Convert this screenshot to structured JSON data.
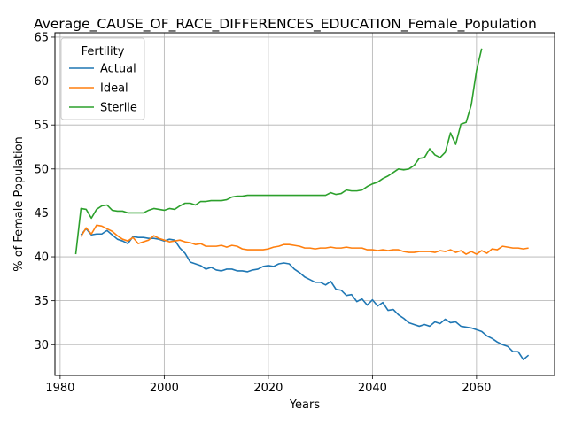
{
  "chart_data": {
    "type": "line",
    "title": "Average_CAUSE_OF_RACE_DIFFERENCES_EDUCATION_Female_Population",
    "xlabel": "Years",
    "ylabel": "% of Female Population",
    "xlim": [
      1979,
      2075
    ],
    "ylim": [
      26.5,
      65.5
    ],
    "xticks": [
      1980,
      2000,
      2020,
      2040,
      2060
    ],
    "yticks": [
      30,
      35,
      40,
      45,
      50,
      55,
      60,
      65
    ],
    "grid": true,
    "legend": {
      "title": "Fertility",
      "placement": "top-left"
    },
    "series": [
      {
        "name": "Actual",
        "color": "#1f77b4",
        "x": [
          1984,
          1985,
          1986,
          1987,
          1988,
          1989,
          1990,
          1991,
          1992,
          1993,
          1994,
          1995,
          1996,
          1997,
          1998,
          1999,
          2000,
          2001,
          2002,
          2003,
          2004,
          2005,
          2006,
          2007,
          2008,
          2009,
          2010,
          2011,
          2012,
          2013,
          2014,
          2015,
          2016,
          2017,
          2018,
          2019,
          2020,
          2021,
          2022,
          2023,
          2024,
          2025,
          2026,
          2027,
          2028,
          2029,
          2030,
          2031,
          2032,
          2033,
          2034,
          2035,
          2036,
          2037,
          2038,
          2039,
          2040,
          2041,
          2042,
          2043,
          2044,
          2045,
          2046,
          2047,
          2048,
          2049,
          2050,
          2051,
          2052,
          2053,
          2054,
          2055,
          2056,
          2057,
          2058,
          2059,
          2060,
          2061,
          2062,
          2063,
          2064,
          2065,
          2066,
          2067,
          2068,
          2069,
          2070
        ],
        "values": [
          42.5,
          43.2,
          42.5,
          42.6,
          42.6,
          43.0,
          42.5,
          42.0,
          41.8,
          41.5,
          42.3,
          42.2,
          42.2,
          42.1,
          42.1,
          42.0,
          41.8,
          42.0,
          41.9,
          41.0,
          40.4,
          39.4,
          39.2,
          39.0,
          38.6,
          38.8,
          38.5,
          38.4,
          38.6,
          38.6,
          38.4,
          38.4,
          38.3,
          38.5,
          38.6,
          38.9,
          39.0,
          38.9,
          39.2,
          39.3,
          39.2,
          38.6,
          38.2,
          37.7,
          37.4,
          37.1,
          37.1,
          36.8,
          37.2,
          36.3,
          36.2,
          35.6,
          35.7,
          34.9,
          35.2,
          34.5,
          35.1,
          34.4,
          34.8,
          33.9,
          34.0,
          33.4,
          33.0,
          32.5,
          32.3,
          32.1,
          32.3,
          32.1,
          32.6,
          32.4,
          32.9,
          32.5,
          32.6,
          32.1,
          32.0,
          31.9,
          31.7,
          31.5,
          31.0,
          30.7,
          30.3,
          30.0,
          29.8,
          29.2,
          29.2,
          28.3,
          28.8
        ]
      },
      {
        "name": "Ideal",
        "color": "#ff7f0e",
        "x": [
          1984,
          1985,
          1986,
          1987,
          1988,
          1989,
          1990,
          1991,
          1992,
          1993,
          1994,
          1995,
          1996,
          1997,
          1998,
          1999,
          2000,
          2001,
          2002,
          2003,
          2004,
          2005,
          2006,
          2007,
          2008,
          2009,
          2010,
          2011,
          2012,
          2013,
          2014,
          2015,
          2016,
          2017,
          2018,
          2019,
          2020,
          2021,
          2022,
          2023,
          2024,
          2025,
          2026,
          2027,
          2028,
          2029,
          2030,
          2031,
          2032,
          2033,
          2034,
          2035,
          2036,
          2037,
          2038,
          2039,
          2040,
          2041,
          2042,
          2043,
          2044,
          2045,
          2046,
          2047,
          2048,
          2049,
          2050,
          2051,
          2052,
          2053,
          2054,
          2055,
          2056,
          2057,
          2058,
          2059,
          2060,
          2061,
          2062,
          2063,
          2064,
          2065,
          2066,
          2067,
          2068,
          2069,
          2070
        ],
        "values": [
          42.3,
          43.3,
          42.6,
          43.6,
          43.5,
          43.2,
          42.9,
          42.4,
          42.0,
          41.8,
          42.2,
          41.5,
          41.7,
          41.9,
          42.4,
          42.1,
          41.9,
          41.7,
          41.8,
          41.9,
          41.7,
          41.6,
          41.4,
          41.5,
          41.2,
          41.2,
          41.2,
          41.3,
          41.1,
          41.3,
          41.2,
          40.9,
          40.8,
          40.8,
          40.8,
          40.8,
          40.9,
          41.1,
          41.2,
          41.4,
          41.4,
          41.3,
          41.2,
          41.0,
          41.0,
          40.9,
          41.0,
          41.0,
          41.1,
          41.0,
          41.0,
          41.1,
          41.0,
          41.0,
          41.0,
          40.8,
          40.8,
          40.7,
          40.8,
          40.7,
          40.8,
          40.8,
          40.6,
          40.5,
          40.5,
          40.6,
          40.6,
          40.6,
          40.5,
          40.7,
          40.6,
          40.8,
          40.5,
          40.7,
          40.3,
          40.6,
          40.3,
          40.7,
          40.4,
          40.9,
          40.8,
          41.2,
          41.1,
          41.0,
          41.0,
          40.9,
          41.0
        ]
      },
      {
        "name": "Sterile",
        "color": "#2ca02c",
        "x": [
          1983,
          1984,
          1985,
          1986,
          1987,
          1988,
          1989,
          1990,
          1991,
          1992,
          1993,
          1994,
          1995,
          1996,
          1997,
          1998,
          1999,
          2000,
          2001,
          2002,
          2003,
          2004,
          2005,
          2006,
          2007,
          2008,
          2009,
          2010,
          2011,
          2012,
          2013,
          2014,
          2015,
          2016,
          2017,
          2018,
          2019,
          2020,
          2021,
          2022,
          2023,
          2024,
          2025,
          2026,
          2027,
          2028,
          2029,
          2030,
          2031,
          2032,
          2033,
          2034,
          2035,
          2036,
          2037,
          2038,
          2039,
          2040,
          2041,
          2042,
          2043,
          2044,
          2045,
          2046,
          2047,
          2048,
          2049,
          2050,
          2051,
          2052,
          2053,
          2054,
          2055,
          2056,
          2057,
          2058,
          2059,
          2060,
          2061
        ],
        "values": [
          40.3,
          45.5,
          45.4,
          44.4,
          45.4,
          45.8,
          45.9,
          45.3,
          45.2,
          45.2,
          45.0,
          45.0,
          45.0,
          45.0,
          45.3,
          45.5,
          45.4,
          45.3,
          45.5,
          45.4,
          45.8,
          46.1,
          46.1,
          45.9,
          46.3,
          46.3,
          46.4,
          46.4,
          46.4,
          46.5,
          46.8,
          46.9,
          46.9,
          47.0,
          47.0,
          47.0,
          47.0,
          47.0,
          47.0,
          47.0,
          47.0,
          47.0,
          47.0,
          47.0,
          47.0,
          47.0,
          47.0,
          47.0,
          47.0,
          47.3,
          47.1,
          47.2,
          47.6,
          47.5,
          47.5,
          47.6,
          48.0,
          48.3,
          48.5,
          48.9,
          49.2,
          49.6,
          50.0,
          49.9,
          50.0,
          50.4,
          51.2,
          51.3,
          52.3,
          51.6,
          51.3,
          51.9,
          54.1,
          52.8,
          55.1,
          55.3,
          57.3,
          61.2,
          63.7
        ]
      }
    ]
  }
}
